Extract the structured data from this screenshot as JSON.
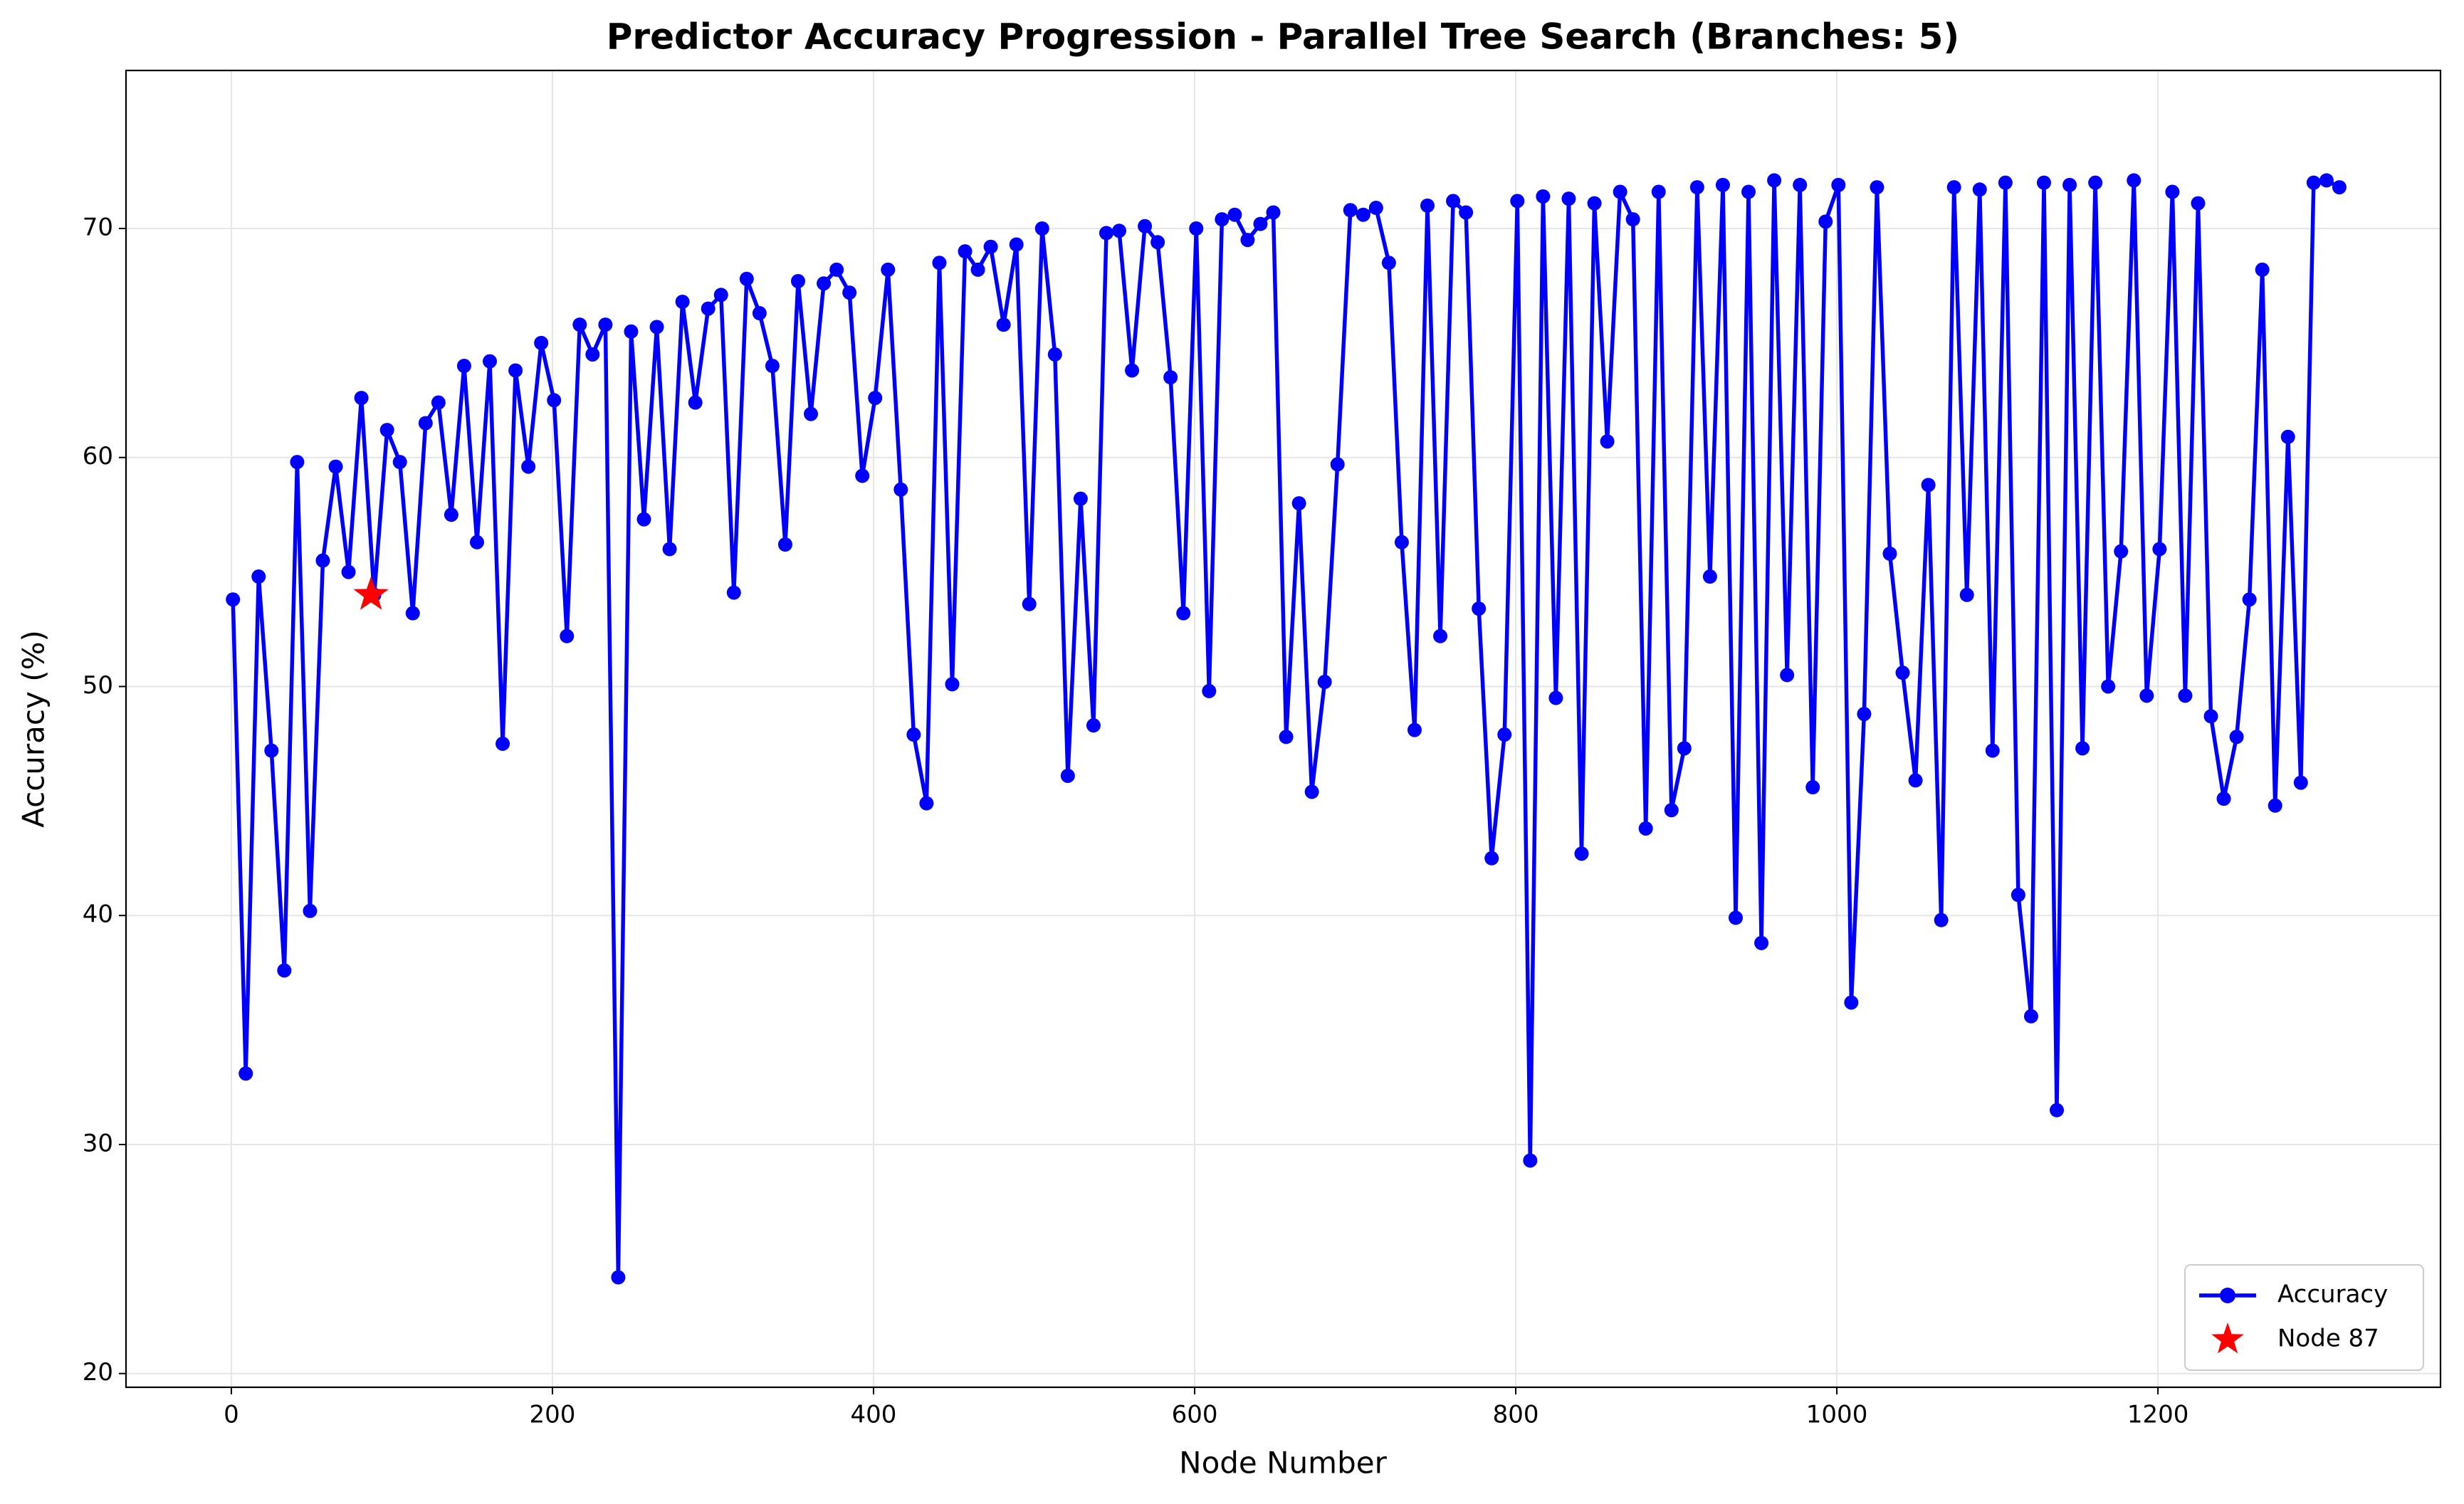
{
  "chart_data": {
    "type": "line",
    "title": "Predictor Accuracy Progression - Parallel Tree Search (Branches: 5)",
    "xlabel": "Node Number",
    "ylabel": "Accuracy (%)",
    "xlim": [
      -65.6,
      1376
    ],
    "ylim": [
      19.4,
      76.9
    ],
    "xticks": [
      0,
      200,
      400,
      600,
      800,
      1000,
      1200
    ],
    "yticks": [
      20,
      30,
      40,
      50,
      60,
      70
    ],
    "grid": true,
    "legend": "lower right",
    "series": [
      {
        "name": "Accuracy",
        "color": "#0000ff",
        "marker": "circle",
        "x": [
          1,
          9,
          17,
          25,
          33,
          41,
          49,
          57,
          65,
          73,
          81,
          89,
          97,
          105,
          113,
          121,
          129,
          137,
          145,
          153,
          161,
          169,
          177,
          185,
          193,
          201,
          209,
          217,
          225,
          233,
          241,
          249,
          257,
          265,
          273,
          281,
          289,
          297,
          305,
          313,
          321,
          329,
          337,
          345,
          353,
          361,
          369,
          377,
          385,
          393,
          401,
          409,
          417,
          425,
          433,
          441,
          449,
          457,
          465,
          473,
          481,
          489,
          497,
          505,
          513,
          521,
          529,
          537,
          545,
          553,
          561,
          569,
          577,
          585,
          593,
          601,
          609,
          617,
          625,
          633,
          641,
          649,
          657,
          665,
          673,
          681,
          689,
          697,
          705,
          713,
          721,
          729,
          737,
          745,
          753,
          761,
          769,
          777,
          785,
          793,
          801,
          809,
          817,
          825,
          833,
          841,
          849,
          857,
          865,
          873,
          881,
          889,
          897,
          905,
          913,
          921,
          929,
          937,
          945,
          953,
          961,
          969,
          977,
          985,
          993,
          1001,
          1009,
          1017,
          1025,
          1033,
          1041,
          1049,
          1057,
          1065,
          1073,
          1081,
          1089,
          1097,
          1105,
          1113,
          1121,
          1129,
          1137,
          1145,
          1153,
          1161,
          1169,
          1177,
          1185,
          1193,
          1201,
          1209,
          1217,
          1225,
          1233,
          1241,
          1249,
          1257,
          1265,
          1273,
          1281,
          1289,
          1297,
          1305,
          1313
        ],
        "values": [
          53.8,
          33.1,
          54.8,
          47.2,
          37.6,
          59.8,
          40.2,
          55.5,
          59.6,
          55.0,
          62.6,
          54.0,
          61.2,
          59.8,
          53.2,
          61.5,
          62.4,
          57.5,
          64.0,
          56.3,
          64.2,
          47.5,
          63.8,
          59.6,
          65.0,
          62.5,
          52.2,
          65.8,
          64.5,
          65.8,
          24.2,
          65.5,
          57.3,
          65.7,
          56.0,
          66.8,
          62.4,
          66.5,
          67.1,
          54.1,
          67.8,
          66.3,
          64.0,
          56.2,
          67.7,
          61.9,
          67.6,
          68.2,
          67.2,
          59.2,
          62.6,
          68.2,
          58.6,
          47.9,
          44.9,
          68.5,
          50.1,
          69.0,
          68.2,
          69.2,
          65.8,
          69.3,
          53.6,
          70.0,
          64.5,
          46.1,
          58.2,
          48.3,
          69.8,
          69.9,
          63.8,
          70.1,
          69.4,
          63.5,
          53.2,
          70.0,
          49.8,
          70.4,
          70.6,
          69.5,
          70.2,
          70.7,
          47.8,
          58.0,
          45.4,
          50.2,
          59.7,
          70.8,
          70.6,
          70.9,
          68.5,
          56.3,
          48.1,
          71.0,
          52.2,
          71.2,
          70.7,
          53.4,
          42.5,
          47.9,
          71.2,
          29.3,
          71.4,
          49.5,
          71.3,
          42.7,
          71.1,
          60.7,
          71.6,
          70.4,
          43.8,
          71.6,
          44.6,
          47.3,
          71.8,
          54.8,
          71.9,
          39.9,
          71.6,
          38.8,
          72.1,
          50.5,
          71.9,
          45.6,
          70.3,
          71.9,
          36.2,
          48.8,
          71.8,
          55.8,
          50.6,
          45.9,
          58.8,
          39.8,
          71.8,
          54.0,
          71.7,
          47.2,
          72.0,
          40.9,
          35.6,
          72.0,
          31.5,
          71.9,
          47.3,
          72.0,
          50.0,
          55.9,
          72.1,
          49.6,
          56.0,
          71.6,
          49.6,
          71.1,
          48.7,
          45.1,
          47.8,
          53.8,
          68.2,
          44.8,
          60.9,
          45.8,
          72.0,
          72.1,
          71.8
        ]
      },
      {
        "name": "Node 87",
        "color": "#ff0000",
        "marker": "star",
        "x": [
          87
        ],
        "values": [
          54.0
        ]
      }
    ]
  }
}
